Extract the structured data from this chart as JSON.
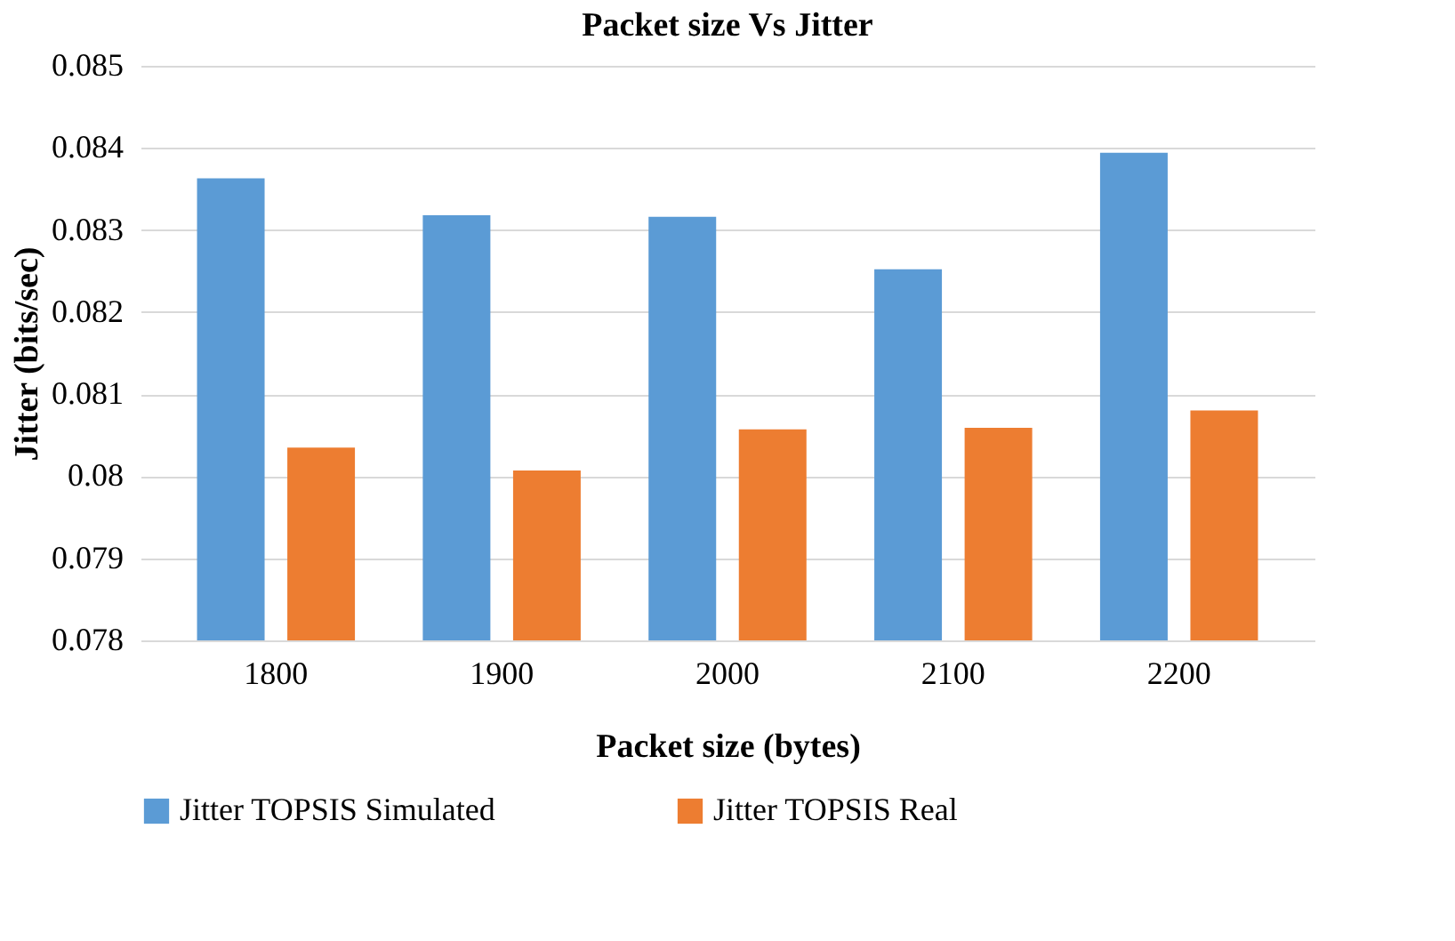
{
  "chart_data": {
    "type": "bar",
    "title": "Packet size Vs Jitter",
    "xlabel": "Packet size (bytes)",
    "ylabel": "Jitter (bits/sec)",
    "categories": [
      "1800",
      "1900",
      "2000",
      "2100",
      "2200"
    ],
    "series": [
      {
        "name": "Jitter TOPSIS Simulated",
        "color": "#5b9bd5",
        "values": [
          0.08363,
          0.08318,
          0.08316,
          0.08252,
          0.08394
        ]
      },
      {
        "name": "Jitter TOPSIS Real",
        "color": "#ed7d31",
        "values": [
          0.08035,
          0.08007,
          0.08057,
          0.08059,
          0.0808
        ]
      }
    ],
    "ylim": [
      0.078,
      0.085
    ],
    "yticks": [
      0.078,
      0.079,
      0.08,
      0.081,
      0.082,
      0.083,
      0.084,
      0.085
    ],
    "grid": "y",
    "legend": "bottom"
  }
}
